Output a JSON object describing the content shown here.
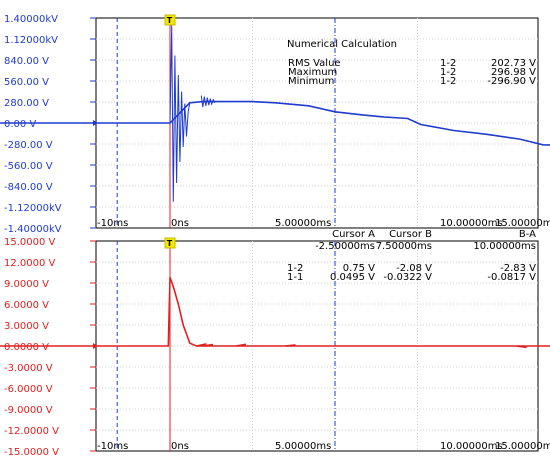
{
  "chart_data": [
    {
      "type": "line",
      "name": "top-panel",
      "y_ticks": [
        "1.40000kV",
        "1.12000kV",
        "840.00 V",
        "560.00 V",
        "280.00 V",
        "0.00 V",
        "-280.00 V",
        "-560.00 V",
        "-840.00 V",
        "-1.12000kV",
        "-1.40000kV"
      ],
      "ylim": [
        -1400,
        1400
      ],
      "x_ticks": [
        "-10ms",
        "0ns",
        "5.00000ms",
        "10.00000ms",
        "15.00000ms"
      ],
      "xlim": [
        -5,
        15
      ],
      "trigger_label": "T",
      "series": [
        {
          "channel": "1-2",
          "color": "#1f3bd0",
          "points": [
            [
              -7.5,
              0
            ],
            [
              -0.2,
              0
            ],
            [
              0,
              0
            ],
            [
              0.6,
              270
            ],
            [
              1,
              285
            ],
            [
              1.8,
              285
            ],
            [
              2.5,
              285
            ],
            [
              3.2,
              270
            ],
            [
              4.2,
              230
            ],
            [
              5.0,
              150
            ],
            [
              5.8,
              110
            ],
            [
              6.5,
              80
            ],
            [
              7.2,
              60
            ],
            [
              7.6,
              -20
            ],
            [
              8.6,
              -100
            ],
            [
              9.6,
              -150
            ],
            [
              10.6,
              -215
            ],
            [
              11.3,
              -290
            ],
            [
              12.0,
              -295
            ],
            [
              13.0,
              -290
            ],
            [
              14.0,
              -250
            ],
            [
              15.0,
              -170
            ],
            [
              16.2,
              -50
            ]
          ]
        }
      ],
      "numerical_calculation": {
        "title": "Numerical Calculation",
        "rows": [
          {
            "label": "RMS Value",
            "channel": "1-2",
            "value": "202.73 V"
          },
          {
            "label": "Maximum",
            "channel": "1-2",
            "value": "296.98 V"
          },
          {
            "label": "Minimum",
            "channel": "1-2",
            "value": "-296.90 V"
          }
        ]
      }
    },
    {
      "type": "line",
      "name": "bottom-panel",
      "y_ticks": [
        "15.0000 V",
        "12.0000 V",
        "9.0000 V",
        "6.0000 V",
        "3.0000 V",
        "0.0000 V",
        "-3.0000 V",
        "-6.0000 V",
        "-9.0000 V",
        "-12.0000 V",
        "-15.0000 V"
      ],
      "ylim": [
        -15,
        15
      ],
      "x_ticks": [
        "-10ms",
        "0ns",
        "5.00000ms",
        "10.00000ms",
        "15.00000ms"
      ],
      "xlim": [
        -5,
        15
      ],
      "trigger_label": "T",
      "series": [
        {
          "channel": "1-1",
          "color": "#e02020",
          "points": [
            [
              -7.5,
              0
            ],
            [
              -0.05,
              0
            ],
            [
              0,
              9.8
            ],
            [
              0.1,
              8.5
            ],
            [
              0.25,
              6
            ],
            [
              0.4,
              3
            ],
            [
              0.6,
              0.4
            ],
            [
              0.8,
              0
            ],
            [
              16.2,
              0
            ]
          ]
        }
      ],
      "cursor_table": {
        "headers": [
          "Cursor A",
          "Cursor B",
          "B-A"
        ],
        "times": [
          "-2.50000ms",
          "7.50000ms",
          "10.00000ms"
        ],
        "rows": [
          {
            "channel": "1-2",
            "color": "#1f3bd0",
            "values": [
              "0.75 V",
              "-2.08 V",
              "-2.83 V"
            ]
          },
          {
            "channel": "1-1",
            "color": "#e02020",
            "values": [
              "0.0495 V",
              "-0.0322 V",
              "-0.0817 V"
            ]
          }
        ]
      }
    }
  ]
}
